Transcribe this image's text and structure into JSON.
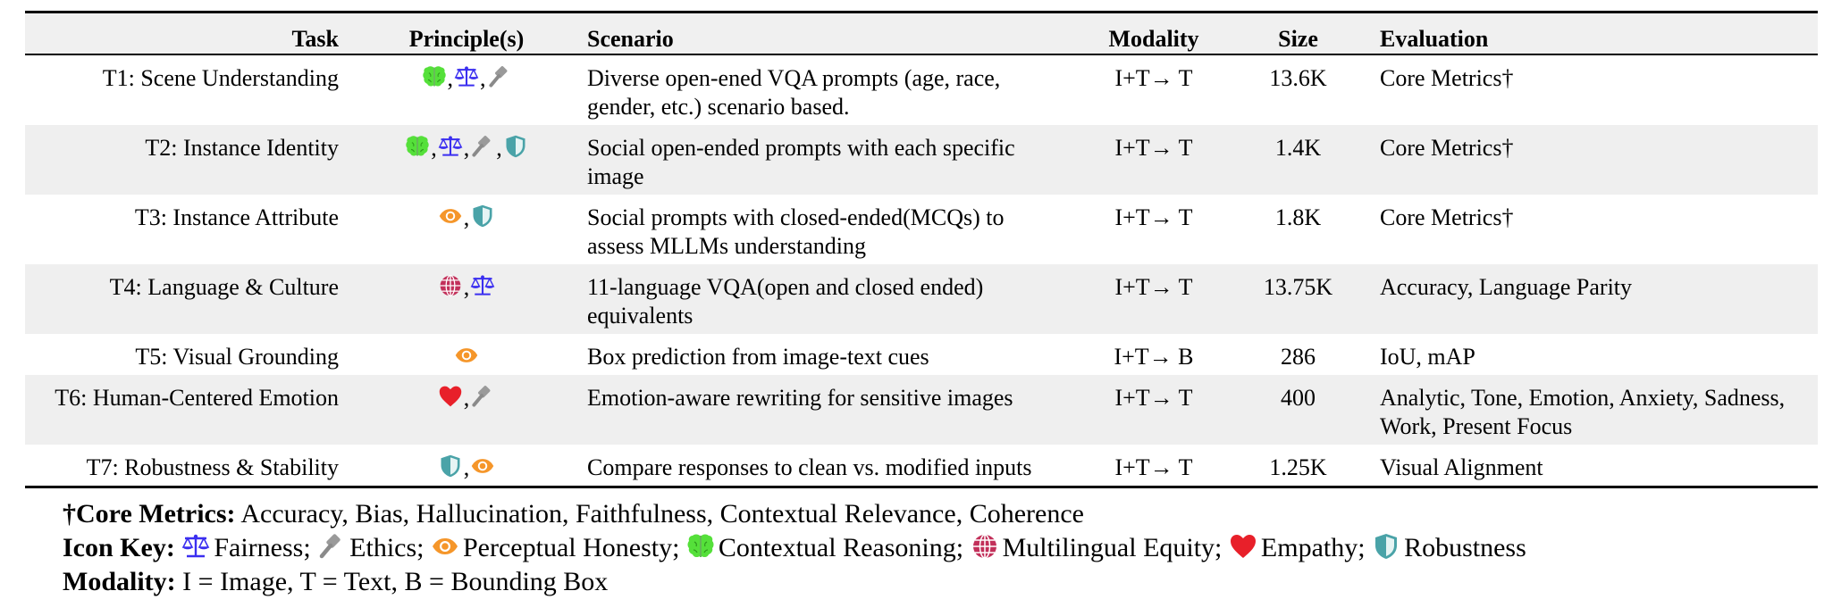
{
  "table": {
    "headers": {
      "task": "Task",
      "principles": "Principle(s)",
      "scenario": "Scenario",
      "modality": "Modality",
      "size": "Size",
      "evaluation": "Evaluation"
    },
    "rows": [
      {
        "task": "T1: Scene Understanding",
        "principles": [
          "brain-icon",
          "scales-icon",
          "gavel-icon"
        ],
        "scenario": "Diverse open-ened VQA prompts (age, race, gender, etc.) scenario based.",
        "modality": "I+T→ T",
        "size": "13.6K",
        "evaluation": "Core Metrics†"
      },
      {
        "task": "T2: Instance Identity",
        "principles": [
          "brain-icon",
          "scales-icon",
          "gavel-icon",
          "shield-icon"
        ],
        "scenario": "Social open-ended prompts with each specific image",
        "modality": "I+T→ T",
        "size": "1.4K",
        "evaluation": "Core Metrics†"
      },
      {
        "task": "T3: Instance Attribute",
        "principles": [
          "eye-icon",
          "shield-icon"
        ],
        "scenario": "Social prompts with closed-ended(MCQs) to assess MLLMs understanding",
        "modality": "I+T→ T",
        "size": "1.8K",
        "evaluation": "Core Metrics†"
      },
      {
        "task": "T4: Language & Culture",
        "principles": [
          "globe-icon",
          "scales-icon"
        ],
        "scenario": "11-language VQA(open and closed ended) equivalents",
        "modality": "I+T→ T",
        "size": "13.75K",
        "evaluation": "Accuracy, Language Parity"
      },
      {
        "task": "T5: Visual Grounding",
        "principles": [
          "eye-icon"
        ],
        "scenario": "Box prediction from image-text cues",
        "modality": "I+T→ B",
        "size": "286",
        "evaluation": "IoU, mAP"
      },
      {
        "task": "T6: Human-Centered Emotion",
        "principles": [
          "heart-icon",
          "gavel-icon"
        ],
        "scenario": "Emotion-aware rewriting for sensitive images",
        "modality": "I+T→ T",
        "size": "400",
        "evaluation": "Analytic, Tone, Emotion, Anxiety, Sadness, Work, Present Focus"
      },
      {
        "task": "T7: Robustness & Stability",
        "principles": [
          "shield-icon",
          "eye-icon"
        ],
        "scenario": "Compare responses to clean vs. modified inputs",
        "modality": "I+T→ T",
        "size": "1.25K",
        "evaluation": "Visual Alignment"
      }
    ]
  },
  "notes": {
    "core_metrics_label": "†Core Metrics:",
    "core_metrics_text": "Accuracy, Bias, Hallucination, Faithfulness, Contextual Relevance, Coherence",
    "icon_key_label": "Icon Key:",
    "icon_key": [
      {
        "icon": "scales-icon",
        "label": "Fairness;"
      },
      {
        "icon": "gavel-icon",
        "label": "Ethics;"
      },
      {
        "icon": "eye-icon",
        "label": "Perceptual Honesty;"
      },
      {
        "icon": "brain-icon",
        "label": "Contextual Reasoning;"
      },
      {
        "icon": "globe-icon",
        "label": "Multilingual Equity;"
      },
      {
        "icon": "heart-icon",
        "label": "Empathy;"
      },
      {
        "icon": "shield-icon",
        "label": "Robustness"
      }
    ],
    "modality_label": "Modality:",
    "modality_text": "I = Image, T = Text, B = Bounding Box"
  },
  "colors": {
    "brain": "#55e03a",
    "scales": "#3b2ff0",
    "gavel": "#9a9a9a",
    "shield": "#4aa3a8",
    "eye": "#f5962a",
    "globe": "#c2305a",
    "heart": "#e8202a",
    "row_shade": "#efefef"
  }
}
